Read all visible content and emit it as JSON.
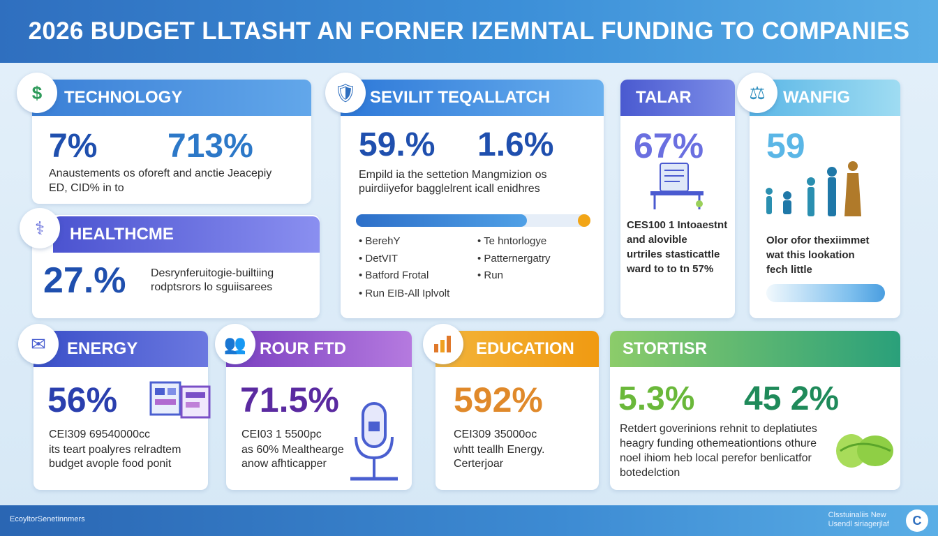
{
  "title": "2026 BUDGET LLTASHT AN FORNER IZEMNTAL FUNDING TO COMPANIES",
  "colors": {
    "header": "#3c8fd8",
    "technology": "#4f8fdc",
    "healthcare": "#5a63d8",
    "security": "#3f8fe0",
    "talar": "#5b6fd8",
    "wanfig": "#6ec3e8",
    "energy": "#4a5fd0",
    "rour": "#8a4fc7",
    "education": "#f0a020",
    "stortisr": "#5cb87a"
  },
  "technology": {
    "icon": "dollar-icon",
    "title": "TECHNOLOGY",
    "stat1": "7%",
    "stat2": "713%",
    "text1": "Anaustements os oforeft and anctie Jeacepiy",
    "text2": "ED, CID% in to"
  },
  "healthcare": {
    "icon": "health-icon",
    "title": "HEALTHCME",
    "stat": "27.%",
    "text1": "Desrynferuitogie-builtiing",
    "text2": "rodptsrors lo sguiisarees"
  },
  "security": {
    "icon": "shield-document-icon",
    "title": "SEVILIT TEQALLATCH",
    "stat1": "59.%",
    "stat2": "1.6%",
    "text1": "Empild ia the settetion Mangmizion os",
    "text2": "puirdiiyefor bagglelrent icall enidhres",
    "progress": 0.73,
    "bullets": [
      "BerehY",
      "DetVIT",
      "Batford Frotal",
      "Run EIB-All Iplvolt",
      "Te hntorlogye",
      "Patternergatry",
      "Run"
    ]
  },
  "talar": {
    "title": "TALAR",
    "stat": "67%",
    "text": [
      "CES100 1 Intoaestnt",
      "and alovible",
      "urtriles stasticattle",
      "ward to to tn 57%"
    ]
  },
  "wanfig": {
    "icon": "scales-icon",
    "title": "WANFIG",
    "stat": "59",
    "text": [
      "Olor ofor thexiimmet",
      "wat this lookation",
      "fech little"
    ]
  },
  "energy": {
    "icon": "chat-icon",
    "title": "ENERGY",
    "stat": "56%",
    "line1": "CEI309 69540000cc",
    "line2": "its teart poalyres relradtem",
    "line3": "budget avople food ponit"
  },
  "rour": {
    "icon": "people-icon",
    "title": "ROUR FTD",
    "stat": "71.5%",
    "line1": "CEI03 1 5500pc",
    "line2": "as 60% Mealthearge",
    "line3": "anow afhticapper"
  },
  "education": {
    "icon": "bar-chart-icon",
    "title": "EDUCATION",
    "stat": "592%",
    "line1": "CEI309 35000oc",
    "line2": "whtt teallh Energy.",
    "line3": "Certerjoar"
  },
  "stortisr": {
    "title": "STORTISR",
    "stat1": "5.3%",
    "stat2": "45 2%",
    "text": [
      "Retdert goverinions rehnit to deplatiutes",
      "heagry funding othemeationtions othure",
      "noel ihiom heb local perefor benlicatfor",
      "botedelction"
    ]
  },
  "footer": {
    "left": "EcoyltorSenetinnmers",
    "right1": "Clsstuinaliis New",
    "right2": "Usendl siriagerjlaf"
  }
}
